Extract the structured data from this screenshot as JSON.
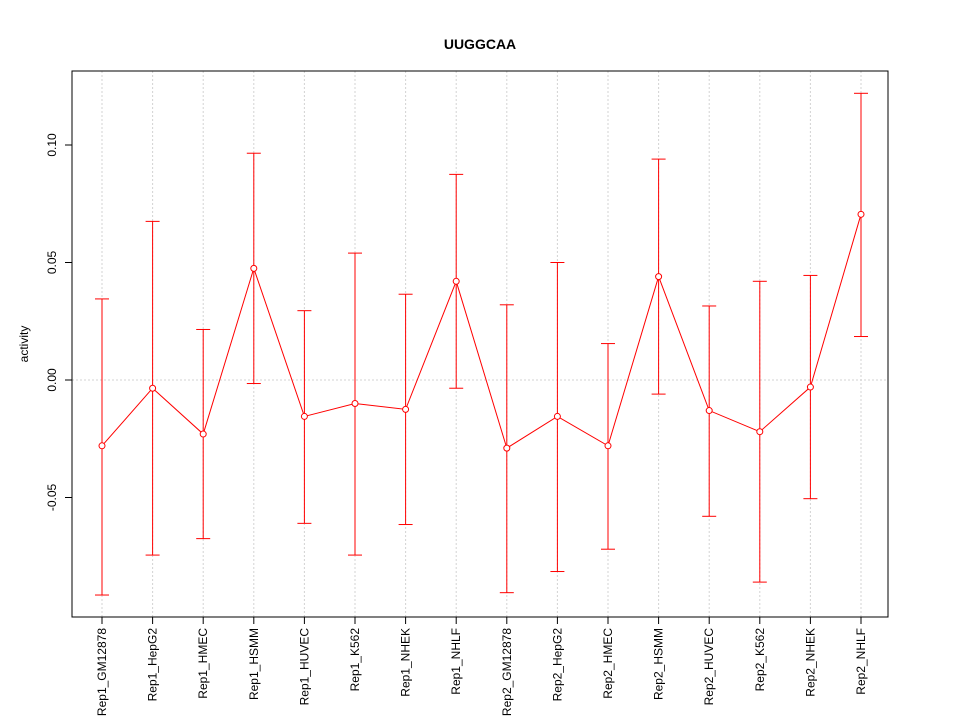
{
  "chart_data": {
    "type": "line",
    "title": "UUGGCAA",
    "xlabel": "",
    "ylabel": "activity",
    "ylim": [
      -0.1,
      0.125
    ],
    "yticks": [
      -0.05,
      0.0,
      0.05,
      0.1
    ],
    "ytick_labels": [
      "-0.05",
      "0.00",
      "0.05",
      "0.10"
    ],
    "categories": [
      "Rep1_GM12878",
      "Rep1_HepG2",
      "Rep1_HMEC",
      "Rep1_HSMM",
      "Rep1_HUVEC",
      "Rep1_K562",
      "Rep1_NHEK",
      "Rep1_NHLF",
      "Rep2_GM12878",
      "Rep2_HepG2",
      "Rep2_HMEC",
      "Rep2_HSMM",
      "Rep2_HUVEC",
      "Rep2_K562",
      "Rep2_NHEK",
      "Rep2_NHLF"
    ],
    "values": [
      -0.028,
      -0.0035,
      -0.023,
      0.0475,
      -0.0155,
      -0.01,
      -0.0125,
      0.042,
      -0.029,
      -0.0155,
      -0.028,
      0.044,
      -0.013,
      -0.022,
      -0.003,
      0.0705
    ],
    "upper": [
      0.0345,
      0.0675,
      0.0215,
      0.0965,
      0.0295,
      0.054,
      0.0365,
      0.0875,
      0.032,
      0.05,
      0.0155,
      0.094,
      0.0315,
      0.042,
      0.0445,
      0.122
    ],
    "lower": [
      -0.0915,
      -0.0745,
      -0.0675,
      -0.0015,
      -0.061,
      -0.0745,
      -0.0615,
      -0.0035,
      -0.0905,
      -0.0815,
      -0.072,
      -0.006,
      -0.058,
      -0.086,
      -0.0505,
      0.0185
    ],
    "grid": true,
    "series_color": "#ff0000",
    "grid_color": "#d3d3d3"
  }
}
